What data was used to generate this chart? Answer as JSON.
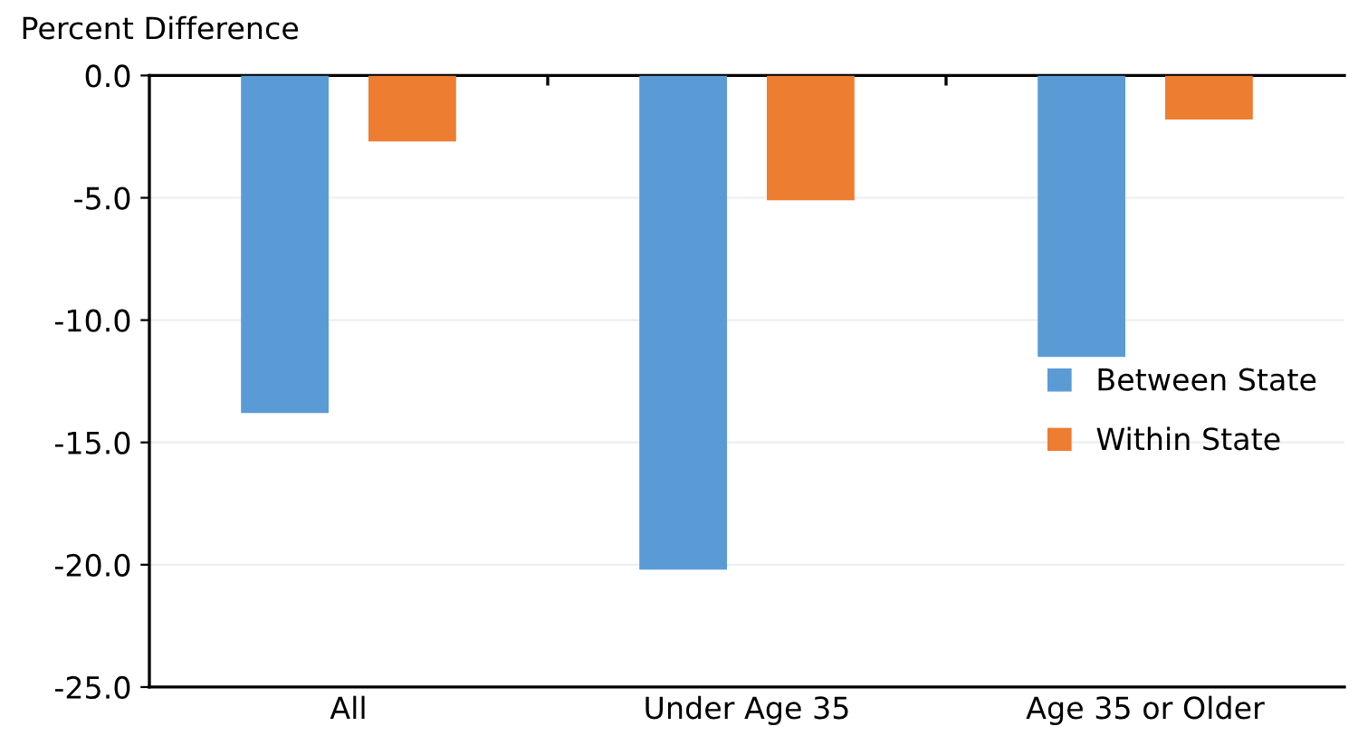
{
  "chart_data": {
    "type": "bar",
    "ylabel": "Percent Difference",
    "categories": [
      "All",
      "Under Age 35",
      "Age 35 or Older"
    ],
    "series": [
      {
        "name": "Between State",
        "color": "#5b9bd5",
        "values": [
          -13.8,
          -20.2,
          -11.5
        ]
      },
      {
        "name": "Within State",
        "color": "#ed7d31",
        "values": [
          -2.7,
          -5.1,
          -1.8
        ]
      }
    ],
    "ylim": [
      -25,
      0
    ],
    "yticks": [
      {
        "value": -25,
        "label": "-25.0"
      },
      {
        "value": -20,
        "label": "-20.0"
      },
      {
        "value": -15,
        "label": "-15.0"
      },
      {
        "value": -10,
        "label": "-10.0"
      },
      {
        "value": -5,
        "label": "-5.0"
      },
      {
        "value": 0,
        "label": "0.0"
      }
    ],
    "grid": "y",
    "legend": "right"
  }
}
